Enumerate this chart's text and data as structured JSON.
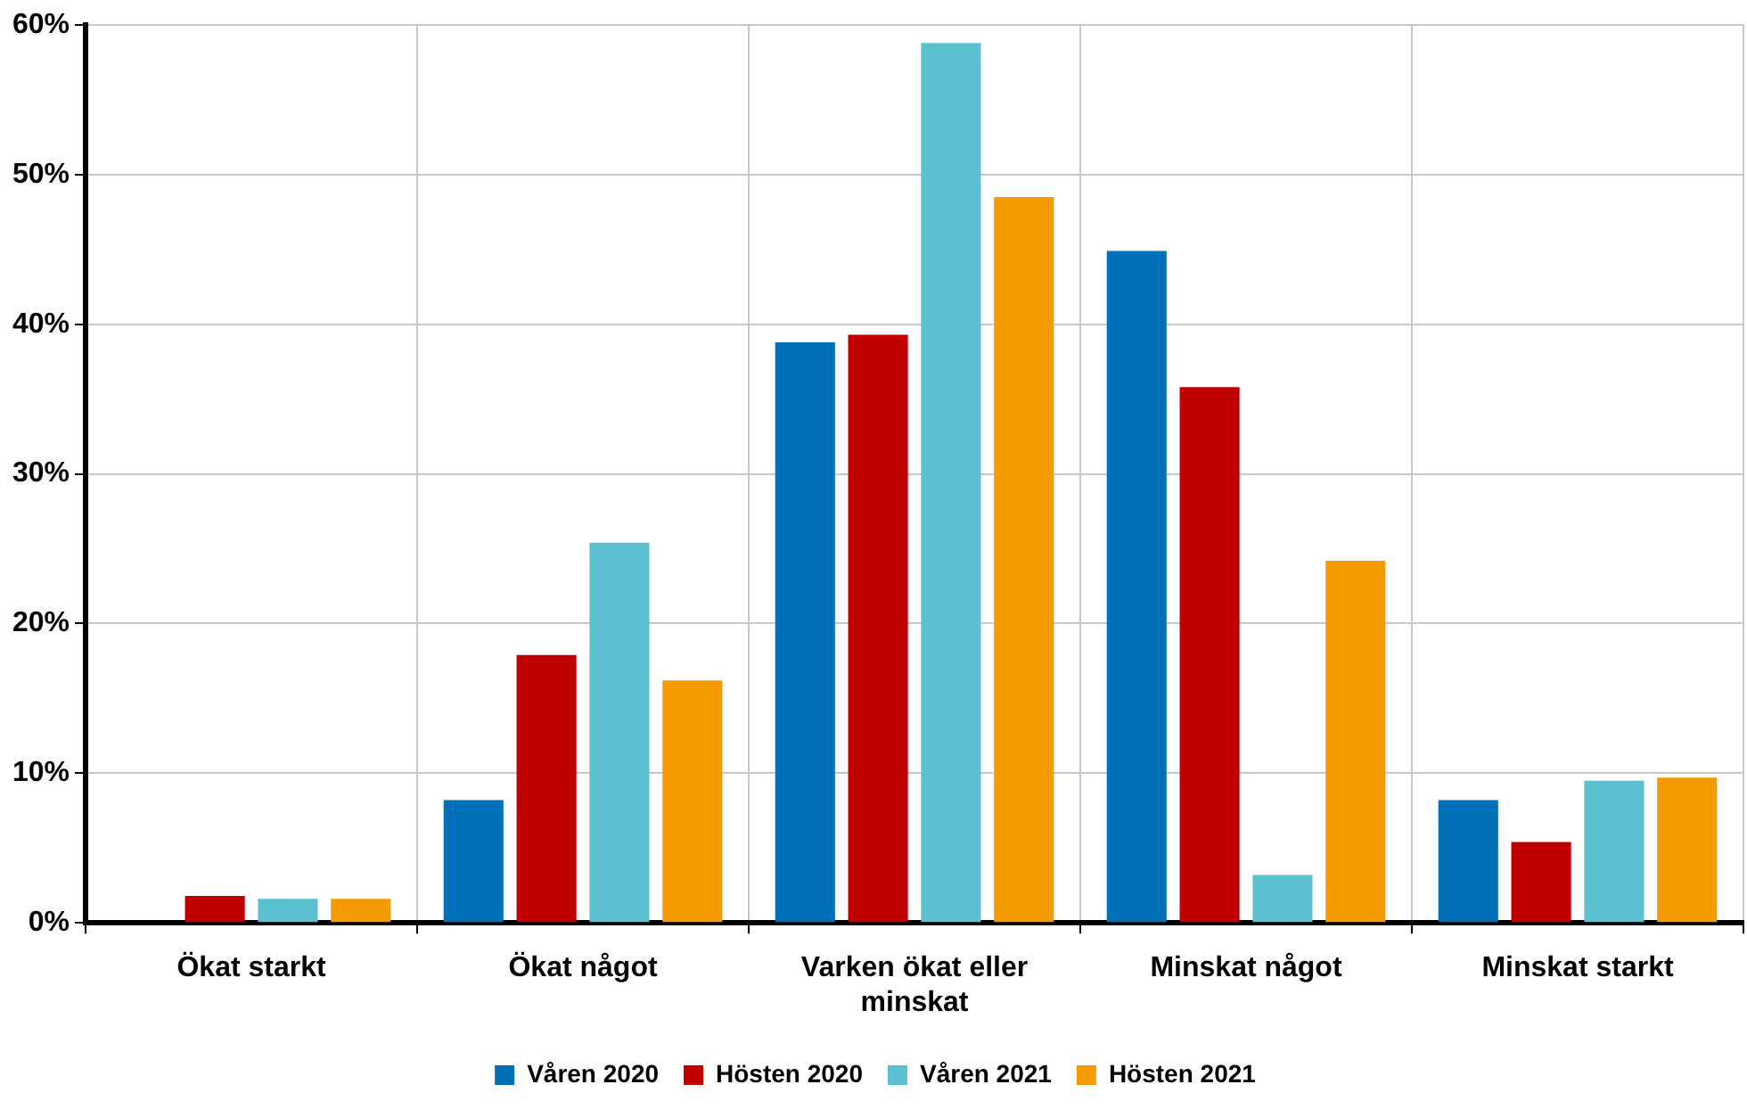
{
  "chart_data": {
    "type": "bar",
    "categories": [
      "Ökat starkt",
      "Ökat något",
      "Varken ökat eller minskat",
      "Minskat något",
      "Minskat starkt"
    ],
    "series": [
      {
        "name": "Våren 2020",
        "color": "#0070b8",
        "values": [
          0,
          8.2,
          38.8,
          44.9,
          8.2
        ]
      },
      {
        "name": "Hösten 2020",
        "color": "#c00000",
        "values": [
          1.8,
          17.9,
          39.3,
          35.8,
          5.4
        ]
      },
      {
        "name": "Våren 2021",
        "color": "#5bc0cf",
        "values": [
          1.6,
          25.4,
          58.8,
          3.2,
          9.5
        ]
      },
      {
        "name": "Hösten 2021",
        "color": "#f59b00",
        "values": [
          1.6,
          16.2,
          48.5,
          24.2,
          9.7
        ]
      }
    ],
    "ylim": [
      0,
      60
    ],
    "yticks": [
      {
        "value": 0,
        "label": "0%"
      },
      {
        "value": 10,
        "label": "10%"
      },
      {
        "value": 20,
        "label": "20%"
      },
      {
        "value": 30,
        "label": "30%"
      },
      {
        "value": 40,
        "label": "40%"
      },
      {
        "value": 50,
        "label": "50%"
      },
      {
        "value": 60,
        "label": "60%"
      }
    ],
    "grid": true,
    "legend": "bottom"
  }
}
